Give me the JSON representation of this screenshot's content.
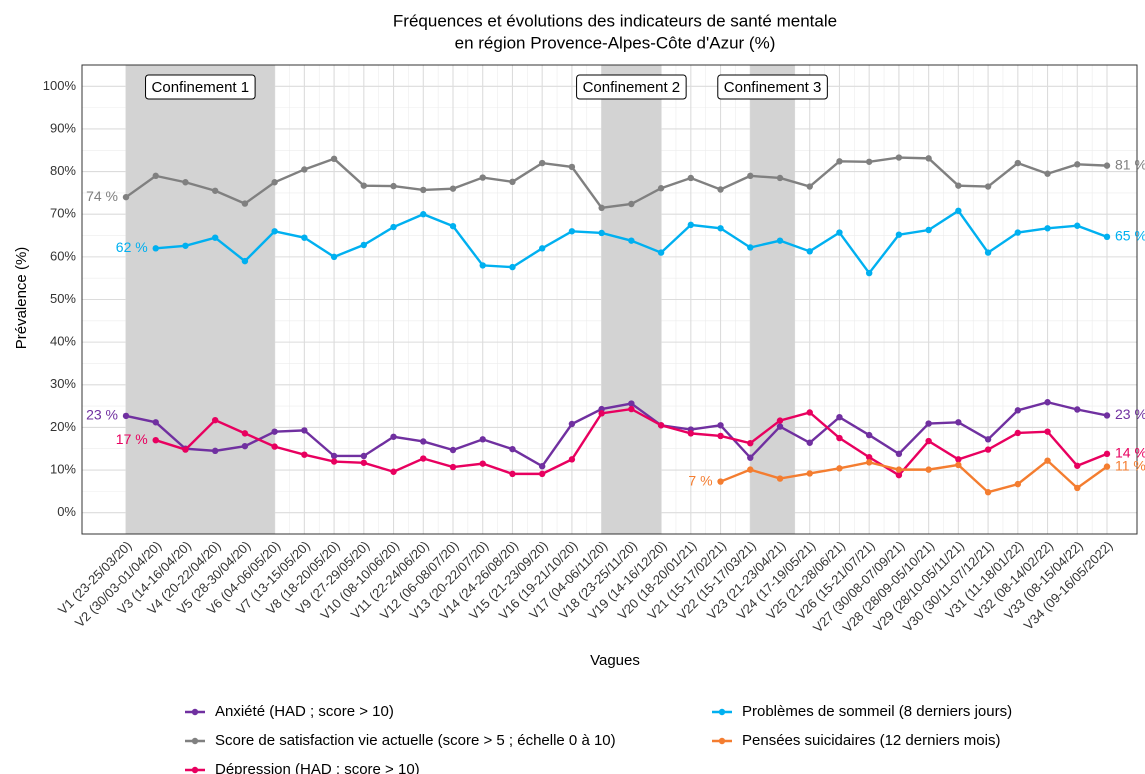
{
  "chart_data": {
    "type": "line",
    "title": [
      "Fréquences et évolutions des indicateurs de santé mentale",
      "en région Provence-Alpes-Côte d'Azur (%)"
    ],
    "x_label": "Vagues",
    "y_label": "Prévalence (%)",
    "categories": [
      "V1 (23-25/03/20)",
      "V2 (30/03-01/04/20)",
      "V3 (14-16/04/20)",
      "V4 (20-22/04/20)",
      "V5 (28-30/04/20)",
      "V6 (04-06/05/20)",
      "V7 (13-15/05/20)",
      "V8 (18-20/05/20)",
      "V9 (27-29/05/20)",
      "V10 (08-10/06/20)",
      "V11 (22-24/06/20)",
      "V12 (06-08/07/20)",
      "V13 (20-22/07/20)",
      "V14 (24-26/08/20)",
      "V15 (21-23/09/20)",
      "V16 (19-21/10/20)",
      "V17 (04-06/11/20)",
      "V18 (23-25/11/20)",
      "V19 (14-16/12/20)",
      "V20 (18-20/01/21)",
      "V21 (15-17/02/21)",
      "V22 (15-17/03/21)",
      "V23 (21-23/04/21)",
      "V24 (17-19/05/21)",
      "V25 (21-28/06/21)",
      "V26 (15-21/07/21)",
      "V27 (30/08-07/09/21)",
      "V28 (28/09-05/10/21)",
      "V29 (28/10-05/11/21)",
      "V30 (30/11-07/12/21)",
      "V31 (11-18/01/22)",
      "V32 (08-14/02/22)",
      "V33 (08-15/04/22)",
      "V34 (09-16/05/2022)"
    ],
    "series": [
      {
        "name": "Anxiété (HAD ; score > 10)",
        "color": "#7030a0",
        "values": [
          22.7,
          21.2,
          15,
          14.5,
          15.6,
          19,
          19.3,
          13.3,
          13.3,
          17.8,
          16.7,
          14.7,
          17.2,
          14.9,
          10.9,
          20.8,
          24.3,
          25.6,
          20.5,
          19.5,
          20.5,
          12.9,
          20.2,
          16.4,
          22.4,
          18.2,
          13.8,
          20.9,
          21.2,
          17.2,
          24,
          25.9,
          24.2,
          22.8
        ],
        "value_labels": [
          "23 %",
          null,
          null,
          null,
          null,
          null,
          null,
          null,
          null,
          null,
          null,
          null,
          null,
          null,
          null,
          null,
          null,
          null,
          null,
          null,
          null,
          null,
          null,
          null,
          null,
          null,
          null,
          null,
          null,
          null,
          null,
          null,
          null,
          "23 %"
        ]
      },
      {
        "name": "Score de satisfaction vie actuelle (score > 5 ; échelle 0 à 10)",
        "color": "#808080",
        "values": [
          74,
          79,
          77.5,
          75.5,
          72.5,
          77.5,
          80.5,
          83,
          76.7,
          76.6,
          75.7,
          76,
          78.6,
          77.6,
          82,
          81.1,
          71.5,
          72.4,
          76.1,
          78.5,
          75.8,
          79,
          78.5,
          76.5,
          82.4,
          82.3,
          83.3,
          83.1,
          76.7,
          76.5,
          82,
          79.5,
          81.7,
          81.4
        ],
        "value_labels": [
          "74 %",
          null,
          null,
          null,
          null,
          null,
          null,
          null,
          null,
          null,
          null,
          null,
          null,
          null,
          null,
          null,
          null,
          null,
          null,
          null,
          null,
          null,
          null,
          null,
          null,
          null,
          null,
          null,
          null,
          null,
          null,
          null,
          null,
          "81 %"
        ]
      },
      {
        "name": "Dépression (HAD ; score > 10)",
        "color": "#e8005f",
        "values": [
          null,
          17,
          14.8,
          21.7,
          18.6,
          15.5,
          13.6,
          12,
          11.7,
          9.6,
          12.7,
          10.7,
          11.5,
          9.1,
          9.1,
          12.5,
          23.3,
          24.3,
          20.5,
          18.6,
          18,
          16.3,
          21.6,
          23.5,
          17.5,
          13,
          8.8,
          16.8,
          12.5,
          14.8,
          18.7,
          19,
          11,
          13.8
        ],
        "value_labels": [
          null,
          "17 %",
          null,
          null,
          null,
          null,
          null,
          null,
          null,
          null,
          null,
          null,
          null,
          null,
          null,
          null,
          null,
          null,
          null,
          null,
          null,
          null,
          null,
          null,
          null,
          null,
          null,
          null,
          null,
          null,
          null,
          null,
          null,
          "14 %"
        ]
      },
      {
        "name": "Problèmes de sommeil (8 derniers jours)",
        "color": "#00b0f0",
        "values": [
          null,
          62,
          62.6,
          64.5,
          59,
          66,
          64.5,
          60,
          62.8,
          67,
          70,
          67.2,
          58,
          57.6,
          62,
          66,
          65.6,
          63.8,
          61,
          67.5,
          66.7,
          62.2,
          63.8,
          61.3,
          65.7,
          56.2,
          65.2,
          66.3,
          70.8,
          61,
          65.7,
          66.7,
          67.3,
          64.7
        ],
        "value_labels": [
          null,
          "62 %",
          null,
          null,
          null,
          null,
          null,
          null,
          null,
          null,
          null,
          null,
          null,
          null,
          null,
          null,
          null,
          null,
          null,
          null,
          null,
          null,
          null,
          null,
          null,
          null,
          null,
          null,
          null,
          null,
          null,
          null,
          null,
          "65 %"
        ]
      },
      {
        "name": "Pensées suicidaires (12 derniers mois)",
        "color": "#f47d30",
        "values": [
          null,
          null,
          null,
          null,
          null,
          null,
          null,
          null,
          null,
          null,
          null,
          null,
          null,
          null,
          null,
          null,
          null,
          null,
          null,
          null,
          7.3,
          10.1,
          8,
          9.2,
          10.4,
          11.8,
          10.1,
          10.1,
          11.2,
          4.8,
          6.7,
          12.2,
          5.8,
          10.8
        ],
        "value_labels": [
          null,
          null,
          null,
          null,
          null,
          null,
          null,
          null,
          null,
          null,
          null,
          null,
          null,
          null,
          null,
          null,
          null,
          null,
          null,
          null,
          "7 %",
          null,
          null,
          null,
          null,
          null,
          null,
          null,
          null,
          null,
          null,
          null,
          null,
          "11 %"
        ]
      }
    ],
    "annotations": [
      {
        "label": "Confinement 1",
        "start": 0,
        "end": 5
      },
      {
        "label": "Confinement 2",
        "start": 16,
        "end": 18
      },
      {
        "label": "Confinement 3",
        "start": 21,
        "end": 22.5
      }
    ],
    "ylim": [
      -5,
      105
    ],
    "yticks": [
      {
        "value": 0,
        "label": "0%"
      },
      {
        "value": 10,
        "label": "10%"
      },
      {
        "value": 20,
        "label": "20%"
      },
      {
        "value": 30,
        "label": "30%"
      },
      {
        "value": 40,
        "label": "40%"
      },
      {
        "value": 50,
        "label": "50%"
      },
      {
        "value": 60,
        "label": "60%"
      },
      {
        "value": 70,
        "label": "70%"
      },
      {
        "value": 80,
        "label": "80%"
      },
      {
        "value": 90,
        "label": "90%"
      },
      {
        "value": 100,
        "label": "100%"
      }
    ],
    "grid": true,
    "legend": "bottom"
  }
}
